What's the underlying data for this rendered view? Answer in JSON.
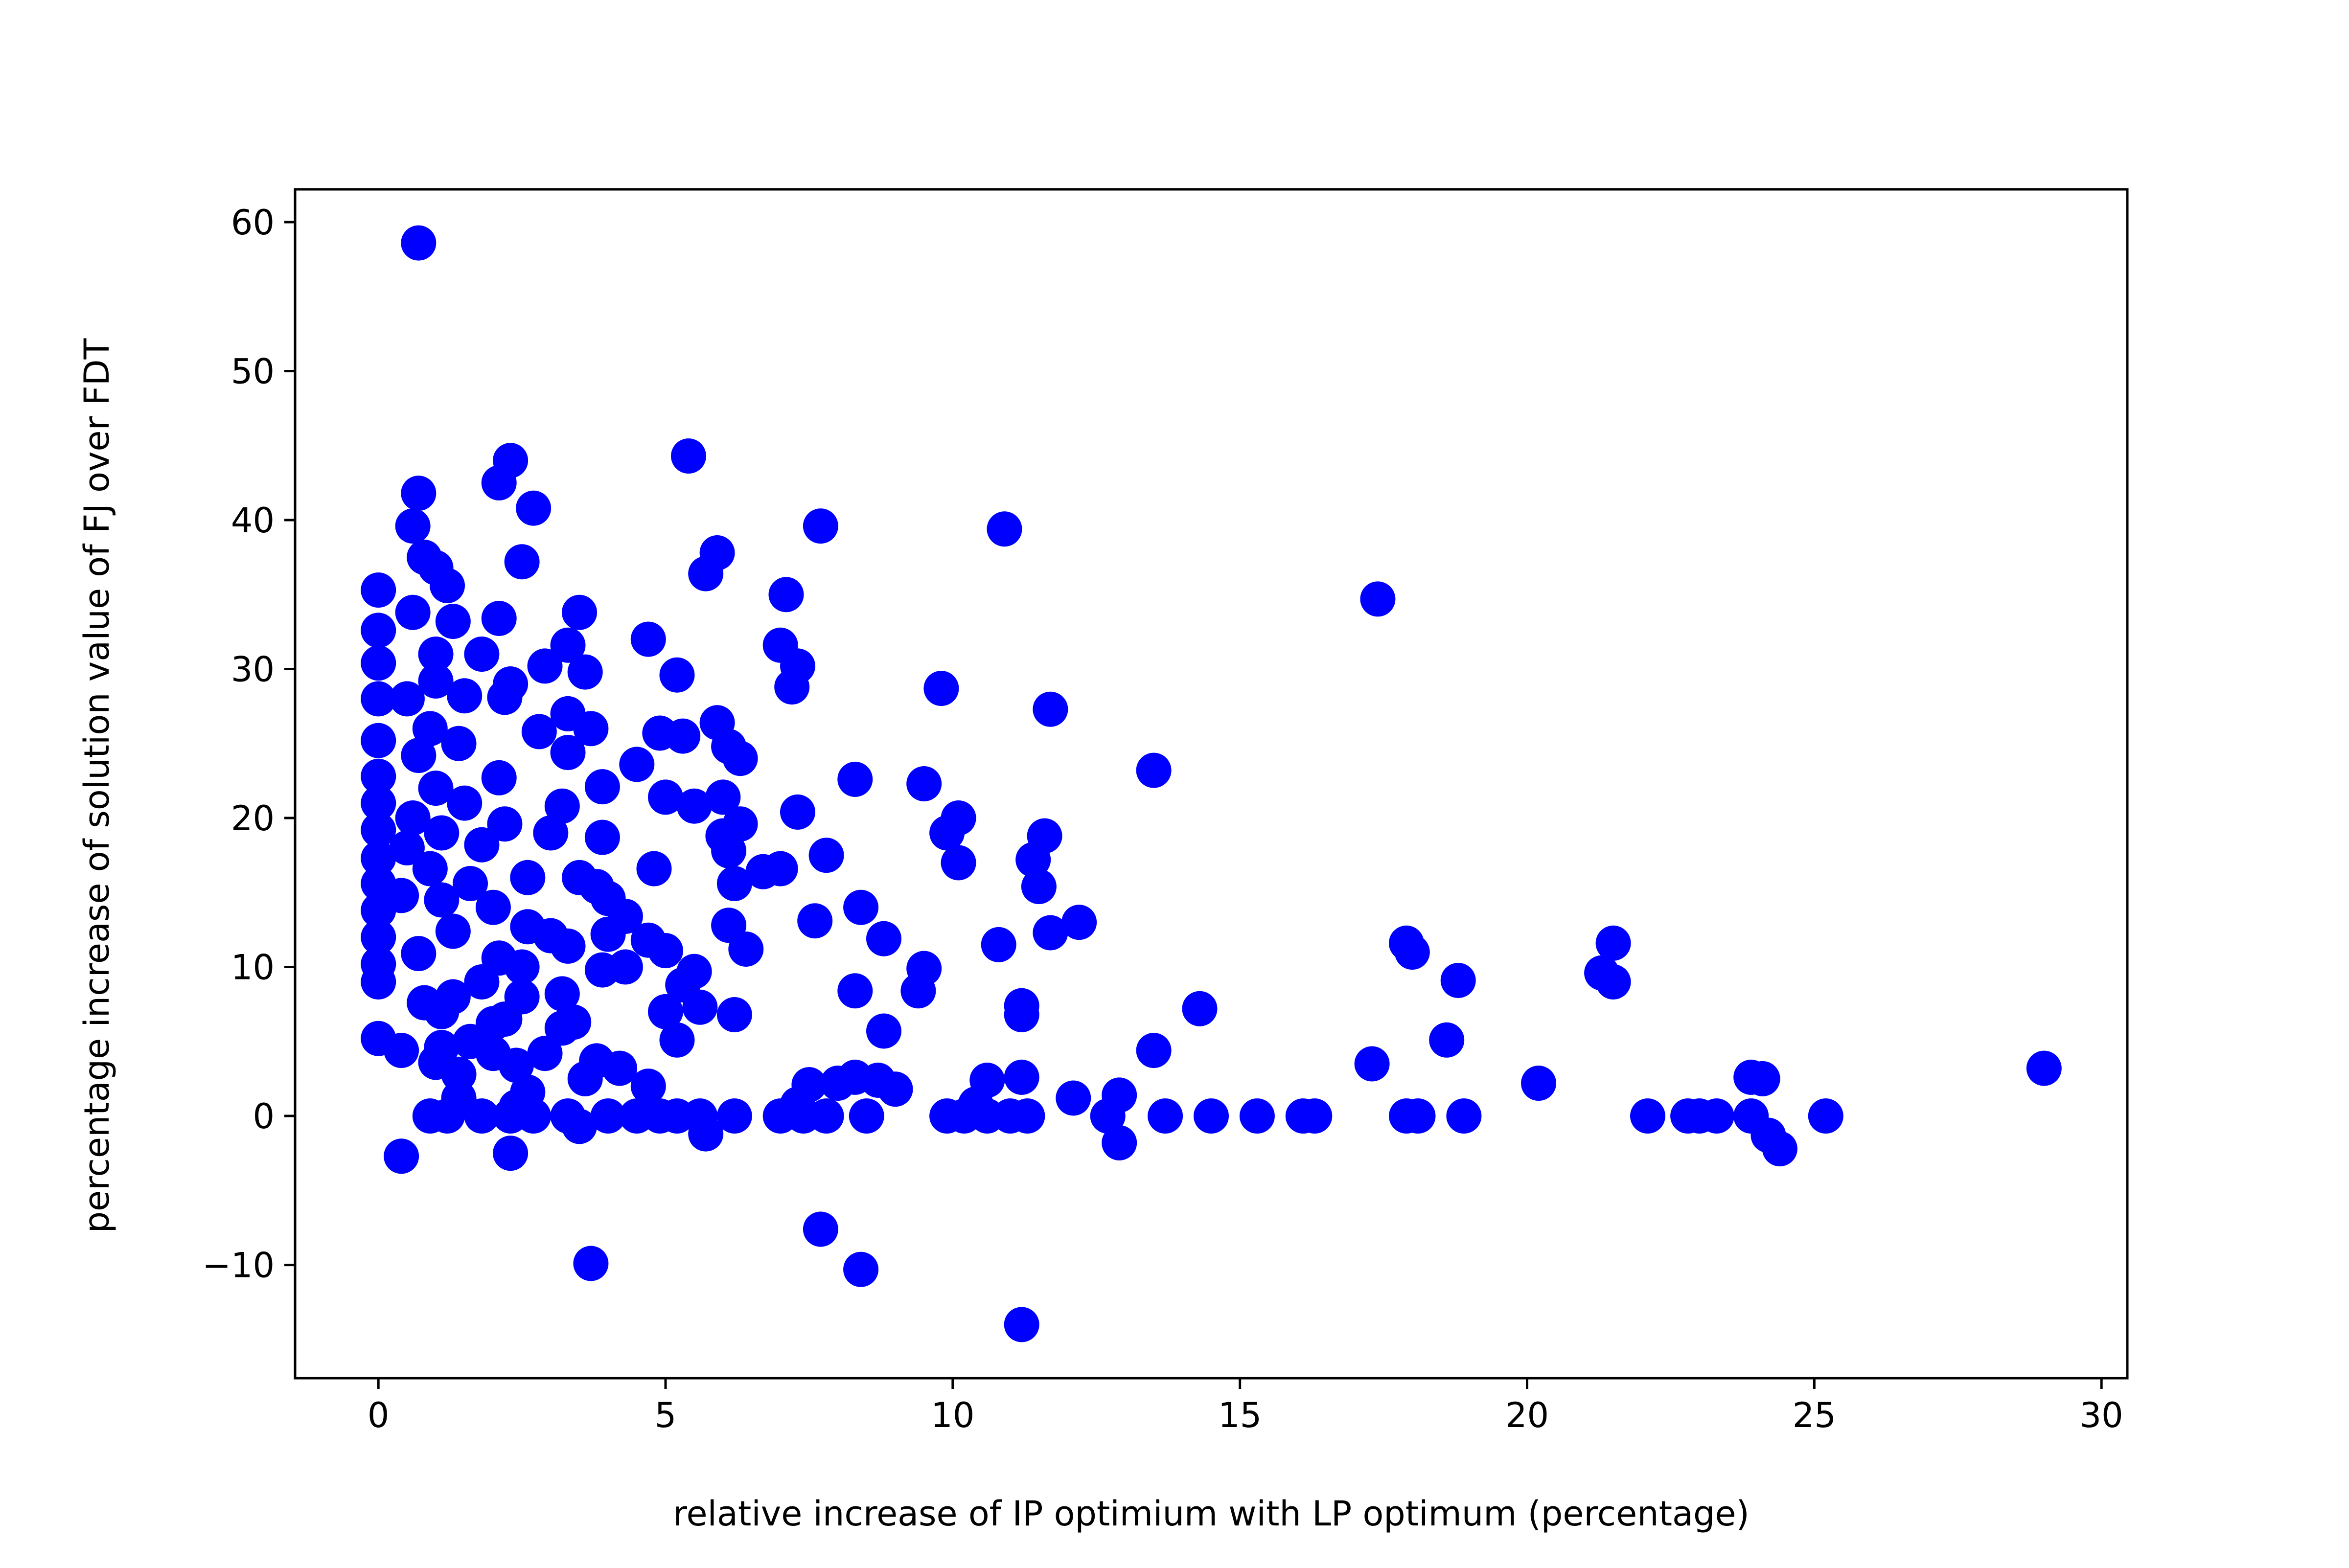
{
  "chart_data": {
    "type": "scatter",
    "title": "",
    "xlabel": "relative increase of IP optimium with LP optimum (percentage)",
    "ylabel": "percentage increase of solution value of FJ over FDT",
    "xlim": [
      -1.45,
      30.45
    ],
    "ylim": [
      -17.6,
      62.2
    ],
    "x_ticks": [
      0,
      5,
      10,
      15,
      20,
      25,
      30
    ],
    "y_ticks": [
      -10,
      0,
      10,
      20,
      30,
      40,
      50,
      60
    ],
    "x_tick_labels": [
      "0",
      "5",
      "10",
      "15",
      "20",
      "25",
      "30"
    ],
    "y_tick_labels": [
      "−10",
      "0",
      "10",
      "20",
      "30",
      "40",
      "50",
      "60"
    ],
    "marker_color": "#0000ff",
    "grid": false,
    "series": [
      {
        "points": [
          [
            0.7,
            58.6
          ],
          [
            2.3,
            44.0
          ],
          [
            5.4,
            44.3
          ],
          [
            2.1,
            42.5
          ],
          [
            0.7,
            41.8
          ],
          [
            2.7,
            40.8
          ],
          [
            0.6,
            39.6
          ],
          [
            7.7,
            39.6
          ],
          [
            10.9,
            39.4
          ],
          [
            5.9,
            37.8
          ],
          [
            5.7,
            36.4
          ],
          [
            0.8,
            37.5
          ],
          [
            1.0,
            36.8
          ],
          [
            1.2,
            35.6
          ],
          [
            2.5,
            37.2
          ],
          [
            0.0,
            35.3
          ],
          [
            7.1,
            35.0
          ],
          [
            17.4,
            34.7
          ],
          [
            0.6,
            33.8
          ],
          [
            3.5,
            33.8
          ],
          [
            1.3,
            33.2
          ],
          [
            2.1,
            33.4
          ],
          [
            0.0,
            32.6
          ],
          [
            4.7,
            32.0
          ],
          [
            3.3,
            31.6
          ],
          [
            7.0,
            31.6
          ],
          [
            1.0,
            31.0
          ],
          [
            1.8,
            31.0
          ],
          [
            0.0,
            30.4
          ],
          [
            2.9,
            30.2
          ],
          [
            7.3,
            30.2
          ],
          [
            3.6,
            29.8
          ],
          [
            5.2,
            29.6
          ],
          [
            1.0,
            29.2
          ],
          [
            2.3,
            29.0
          ],
          [
            7.2,
            28.8
          ],
          [
            9.8,
            28.7
          ],
          [
            0.0,
            28.0
          ],
          [
            0.5,
            28.0
          ],
          [
            1.5,
            28.2
          ],
          [
            2.2,
            28.1
          ],
          [
            11.7,
            27.3
          ],
          [
            3.3,
            27.0
          ],
          [
            5.9,
            26.4
          ],
          [
            0.9,
            26.0
          ],
          [
            2.8,
            25.8
          ],
          [
            3.7,
            26.0
          ],
          [
            4.9,
            25.7
          ],
          [
            5.3,
            25.5
          ],
          [
            0.0,
            25.2
          ],
          [
            1.4,
            25.0
          ],
          [
            6.1,
            24.8
          ],
          [
            3.3,
            24.4
          ],
          [
            6.3,
            24.0
          ],
          [
            0.7,
            24.2
          ],
          [
            4.5,
            23.6
          ],
          [
            13.5,
            23.2
          ],
          [
            0.0,
            22.8
          ],
          [
            2.1,
            22.7
          ],
          [
            8.3,
            22.6
          ],
          [
            9.5,
            22.3
          ],
          [
            1.0,
            22.0
          ],
          [
            3.9,
            22.1
          ],
          [
            5.0,
            21.4
          ],
          [
            6.0,
            21.4
          ],
          [
            0.0,
            21.0
          ],
          [
            1.5,
            21.0
          ],
          [
            3.2,
            20.8
          ],
          [
            5.5,
            20.8
          ],
          [
            7.3,
            20.4
          ],
          [
            10.1,
            20.0
          ],
          [
            0.6,
            20.0
          ],
          [
            2.2,
            19.6
          ],
          [
            6.3,
            19.6
          ],
          [
            0.0,
            19.2
          ],
          [
            1.1,
            19.0
          ],
          [
            3.0,
            19.0
          ],
          [
            6.0,
            18.8
          ],
          [
            9.9,
            19.0
          ],
          [
            11.6,
            18.8
          ],
          [
            3.9,
            18.7
          ],
          [
            0.5,
            18.0
          ],
          [
            1.8,
            18.2
          ],
          [
            6.1,
            17.8
          ],
          [
            7.8,
            17.5
          ],
          [
            0.0,
            17.3
          ],
          [
            11.4,
            17.2
          ],
          [
            10.1,
            17.0
          ],
          [
            0.9,
            16.6
          ],
          [
            4.8,
            16.6
          ],
          [
            6.7,
            16.4
          ],
          [
            7.0,
            16.6
          ],
          [
            2.6,
            16.0
          ],
          [
            3.5,
            16.0
          ],
          [
            0.0,
            15.6
          ],
          [
            1.6,
            15.6
          ],
          [
            6.2,
            15.6
          ],
          [
            11.5,
            15.4
          ],
          [
            3.8,
            15.4
          ],
          [
            4.0,
            14.6
          ],
          [
            0.4,
            14.8
          ],
          [
            1.1,
            14.5
          ],
          [
            2.0,
            14.0
          ],
          [
            8.4,
            14.0
          ],
          [
            0.0,
            13.8
          ],
          [
            4.3,
            13.4
          ],
          [
            7.6,
            13.1
          ],
          [
            12.2,
            13.0
          ],
          [
            6.1,
            12.8
          ],
          [
            2.6,
            12.7
          ],
          [
            1.3,
            12.4
          ],
          [
            3.0,
            12.1
          ],
          [
            0.0,
            12.0
          ],
          [
            8.8,
            11.9
          ],
          [
            4.0,
            12.2
          ],
          [
            4.7,
            11.8
          ],
          [
            11.7,
            12.3
          ],
          [
            10.8,
            11.5
          ],
          [
            6.4,
            11.2
          ],
          [
            17.9,
            11.6
          ],
          [
            21.5,
            11.6
          ],
          [
            3.3,
            11.4
          ],
          [
            5.0,
            11.1
          ],
          [
            18.0,
            11.0
          ],
          [
            0.7,
            10.9
          ],
          [
            2.1,
            10.6
          ],
          [
            0.0,
            10.2
          ],
          [
            2.5,
            10.0
          ],
          [
            3.9,
            9.8
          ],
          [
            4.3,
            10.0
          ],
          [
            9.5,
            9.9
          ],
          [
            5.5,
            9.7
          ],
          [
            21.3,
            9.6
          ],
          [
            0.0,
            9.0
          ],
          [
            1.8,
            9.0
          ],
          [
            5.3,
            8.8
          ],
          [
            18.8,
            9.1
          ],
          [
            21.5,
            9.0
          ],
          [
            8.3,
            8.4
          ],
          [
            3.2,
            8.2
          ],
          [
            9.4,
            8.4
          ],
          [
            1.3,
            8.0
          ],
          [
            2.5,
            8.0
          ],
          [
            0.8,
            7.6
          ],
          [
            5.6,
            7.3
          ],
          [
            11.2,
            7.4
          ],
          [
            14.3,
            7.2
          ],
          [
            5.0,
            7.0
          ],
          [
            1.1,
            7.0
          ],
          [
            6.2,
            6.8
          ],
          [
            11.2,
            6.8
          ],
          [
            2.2,
            6.5
          ],
          [
            2.0,
            6.2
          ],
          [
            3.4,
            6.3
          ],
          [
            3.2,
            5.9
          ],
          [
            8.8,
            5.7
          ],
          [
            0.0,
            5.2
          ],
          [
            1.6,
            5.0
          ],
          [
            5.2,
            5.1
          ],
          [
            18.6,
            5.1
          ],
          [
            0.4,
            4.4
          ],
          [
            1.1,
            4.6
          ],
          [
            2.0,
            4.2
          ],
          [
            2.9,
            4.2
          ],
          [
            13.5,
            4.4
          ],
          [
            1.0,
            3.6
          ],
          [
            3.8,
            3.7
          ],
          [
            2.4,
            3.4
          ],
          [
            17.3,
            3.5
          ],
          [
            29.0,
            3.2
          ],
          [
            4.2,
            3.2
          ],
          [
            1.4,
            2.8
          ],
          [
            3.6,
            2.5
          ],
          [
            8.3,
            2.6
          ],
          [
            8.7,
            2.4
          ],
          [
            10.6,
            2.4
          ],
          [
            11.2,
            2.6
          ],
          [
            23.9,
            2.6
          ],
          [
            24.1,
            2.5
          ],
          [
            20.2,
            2.2
          ],
          [
            7.5,
            2.1
          ],
          [
            8.0,
            2.2
          ],
          [
            4.7,
            2.0
          ],
          [
            9.0,
            1.8
          ],
          [
            2.6,
            1.6
          ],
          [
            1.4,
            1.2
          ],
          [
            12.1,
            1.2
          ],
          [
            12.9,
            1.4
          ],
          [
            7.3,
            0.8
          ],
          [
            10.4,
            0.8
          ],
          [
            2.4,
            0.6
          ],
          [
            0.9,
            0.0
          ],
          [
            1.2,
            0.0
          ],
          [
            1.8,
            0.0
          ],
          [
            2.3,
            0.0
          ],
          [
            2.7,
            0.0
          ],
          [
            3.3,
            0.0
          ],
          [
            4.0,
            0.0
          ],
          [
            4.5,
            0.0
          ],
          [
            4.9,
            0.0
          ],
          [
            5.2,
            0.0
          ],
          [
            5.6,
            0.0
          ],
          [
            6.2,
            0.0
          ],
          [
            7.0,
            0.0
          ],
          [
            7.4,
            0.0
          ],
          [
            7.8,
            0.0
          ],
          [
            8.5,
            0.0
          ],
          [
            9.9,
            0.0
          ],
          [
            10.2,
            0.0
          ],
          [
            10.6,
            0.0
          ],
          [
            11.0,
            0.0
          ],
          [
            11.3,
            0.0
          ],
          [
            12.7,
            0.0
          ],
          [
            13.7,
            0.0
          ],
          [
            14.5,
            0.0
          ],
          [
            15.3,
            0.0
          ],
          [
            16.1,
            0.0
          ],
          [
            16.3,
            0.0
          ],
          [
            17.9,
            0.0
          ],
          [
            18.1,
            0.0
          ],
          [
            18.9,
            0.0
          ],
          [
            22.1,
            0.0
          ],
          [
            22.8,
            0.0
          ],
          [
            23.0,
            0.0
          ],
          [
            23.3,
            0.0
          ],
          [
            23.9,
            0.0
          ],
          [
            25.2,
            0.0
          ],
          [
            3.5,
            -0.7
          ],
          [
            5.7,
            -1.2
          ],
          [
            24.2,
            -1.3
          ],
          [
            12.9,
            -1.8
          ],
          [
            24.4,
            -2.2
          ],
          [
            0.4,
            -2.7
          ],
          [
            2.3,
            -2.5
          ],
          [
            7.7,
            -7.6
          ],
          [
            3.7,
            -9.9
          ],
          [
            8.4,
            -10.3
          ],
          [
            11.2,
            -14.0
          ]
        ]
      }
    ]
  }
}
